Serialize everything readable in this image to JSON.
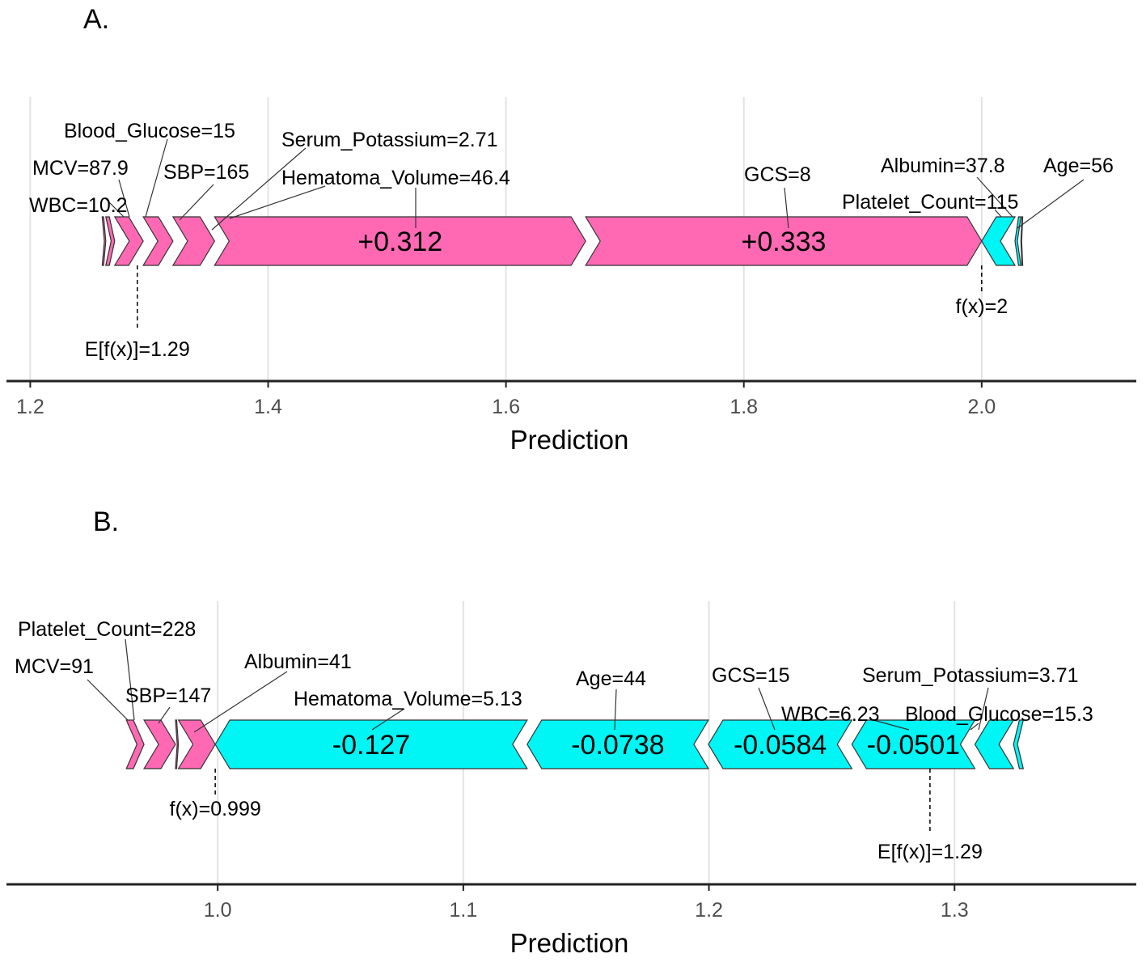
{
  "colors": {
    "positive": "#ff69b4",
    "negative": "#00f5f5"
  },
  "chart_data": [
    {
      "type": "force",
      "panel_label": "A.",
      "xlabel": "Prediction",
      "xlim": [
        1.18,
        2.13
      ],
      "ticks": [
        1.2,
        1.4,
        1.6,
        1.8,
        2.0
      ],
      "tick_labels": [
        "1.2",
        "1.4",
        "1.6",
        "1.8",
        "2.0"
      ],
      "base_value": 1.29,
      "base_label": "E[f(x)]=1.29",
      "output_value": 2.0,
      "output_label": "f(x)=2",
      "features": [
        {
          "name": "WBC=10.2",
          "start": 1.2605,
          "end": 1.2635,
          "sign": "positive",
          "value_label": ""
        },
        {
          "name": "MCV=87.9",
          "start": 1.2635,
          "end": 1.271,
          "sign": "positive",
          "value_label": ""
        },
        {
          "name": "Blood_Glucose=15",
          "start": 1.271,
          "end": 1.295,
          "sign": "positive",
          "value_label": ""
        },
        {
          "name": "SBP=165",
          "start": 1.295,
          "end": 1.32,
          "sign": "positive",
          "value_label": ""
        },
        {
          "name": "Serum_Potassium=2.71",
          "start": 1.32,
          "end": 1.355,
          "sign": "positive",
          "value_label": ""
        },
        {
          "name": "Hematoma_Volume=46.4",
          "start": 1.355,
          "end": 1.667,
          "sign": "positive",
          "value_label": "+0.312"
        },
        {
          "name": "GCS=8",
          "start": 1.667,
          "end": 2.0,
          "sign": "positive",
          "value_label": "+0.333"
        },
        {
          "name": "Platelet_Count=115",
          "start": 2.0,
          "end": 2.028,
          "sign": "negative",
          "value_label": ""
        },
        {
          "name": "Albumin=37.8",
          "start": 2.028,
          "end": 2.033,
          "sign": "negative",
          "value_label": ""
        },
        {
          "name": "Age=56",
          "start": 2.033,
          "end": 2.0345,
          "sign": "negative",
          "value_label": ""
        }
      ]
    },
    {
      "type": "force",
      "panel_label": "B.",
      "xlabel": "Prediction",
      "xlim": [
        0.914,
        1.374
      ],
      "ticks": [
        1.0,
        1.1,
        1.2,
        1.3
      ],
      "tick_labels": [
        "1.0",
        "1.1",
        "1.2",
        "1.3"
      ],
      "base_value": 1.29,
      "base_label": "E[f(x)]=1.29",
      "output_value": 0.999,
      "output_label": "f(x)=0.999",
      "features": [
        {
          "name": "MCV=91",
          "start": 0.9628,
          "end": 0.97,
          "sign": "positive",
          "value_label": ""
        },
        {
          "name": "Platelet_Count=228",
          "start": 0.97,
          "end": 0.9828,
          "sign": "positive",
          "value_label": ""
        },
        {
          "name": "SBP=147",
          "start": 0.9828,
          "end": 0.984,
          "sign": "positive",
          "value_label": ""
        },
        {
          "name": "Albumin=41",
          "start": 0.984,
          "end": 0.999,
          "sign": "positive",
          "value_label": ""
        },
        {
          "name": "Hematoma_Volume=5.13",
          "start": 0.999,
          "end": 1.126,
          "sign": "negative",
          "value_label": "-0.127"
        },
        {
          "name": "Age=44",
          "start": 1.126,
          "end": 1.1998,
          "sign": "negative",
          "value_label": "-0.0738"
        },
        {
          "name": "GCS=15",
          "start": 1.1998,
          "end": 1.2582,
          "sign": "negative",
          "value_label": "-0.0584"
        },
        {
          "name": "WBC=6.23",
          "start": 1.2582,
          "end": 1.3083,
          "sign": "negative",
          "value_label": "-0.0501"
        },
        {
          "name": "Blood_Glucose=15.3",
          "start": 1.3083,
          "end": 1.324,
          "sign": "negative",
          "value_label": ""
        },
        {
          "name": "Serum_Potassium=3.71",
          "start": 1.324,
          "end": 1.328,
          "sign": "negative",
          "value_label": ""
        }
      ]
    }
  ]
}
